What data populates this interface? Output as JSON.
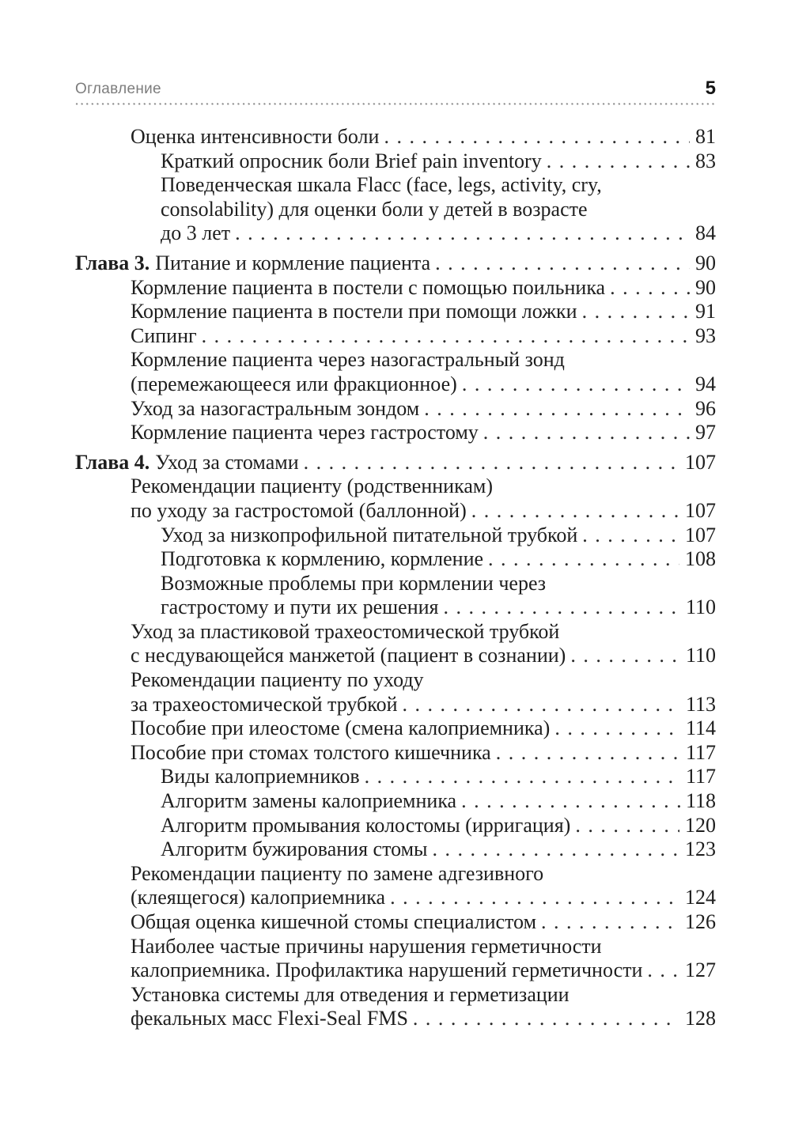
{
  "header": {
    "title": "Оглавление",
    "page_number": "5"
  },
  "toc": {
    "entries": [
      {
        "level": 1,
        "text": "Оценка интенсивности боли",
        "page": "81"
      },
      {
        "level": 2,
        "text": "Краткий опросник боли Brief pain inventory",
        "page": "83"
      },
      {
        "level": 2,
        "text": "Поведенческая шкала Flacc (face, legs, activity, cry,"
      },
      {
        "level": 2,
        "text": "consolability) для оценки боли у детей в возрасте"
      },
      {
        "level": 2,
        "text": "до 3 лет",
        "page": "84"
      },
      {
        "level": 0,
        "prefix": "Глава 3.",
        "text": "Питание и кормление пациента",
        "page": "90"
      },
      {
        "level": 1,
        "text": "Кормление пациента в постели с помощью поильника",
        "page": "90"
      },
      {
        "level": 1,
        "text": "Кормление пациента в постели при помощи ложки",
        "page": "91"
      },
      {
        "level": 1,
        "text": "Сипинг",
        "page": "93"
      },
      {
        "level": 1,
        "text": "Кормление пациента через назогастральный зонд"
      },
      {
        "level": 1,
        "text": "(перемежающееся или фракционное)",
        "page": "94"
      },
      {
        "level": 1,
        "text": "Уход за назогастральным зондом",
        "page": "96"
      },
      {
        "level": 1,
        "text": "Кормление пациента через гастростому",
        "page": "97"
      },
      {
        "level": 0,
        "prefix": "Глава 4.",
        "text": "Уход за стомами",
        "page": "107"
      },
      {
        "level": 1,
        "text": "Рекомендации пациенту (родственникам)"
      },
      {
        "level": 1,
        "text": "по уходу за гастростомой (баллонной)",
        "page": "107"
      },
      {
        "level": 2,
        "text": "Уход за низкопрофильной питательной трубкой",
        "page": "107"
      },
      {
        "level": 2,
        "text": "Подготовка к кормлению, кормление",
        "page": "108"
      },
      {
        "level": 2,
        "text": "Возможные проблемы при кормлении через"
      },
      {
        "level": 2,
        "text": "гастростому и пути их решения",
        "page": "110"
      },
      {
        "level": 1,
        "text": "Уход за пластиковой трахеостомической трубкой"
      },
      {
        "level": 1,
        "text": "с несдувающейся манжетой (пациент в сознании)",
        "page": "110"
      },
      {
        "level": 1,
        "text": "Рекомендации пациенту по уходу"
      },
      {
        "level": 1,
        "text": "за трахеостомической трубкой",
        "page": "113"
      },
      {
        "level": 1,
        "text": "Пособие при илеостоме (смена калоприемника)",
        "page": "114"
      },
      {
        "level": 1,
        "text": "Пособие при стомах толстого кишечника",
        "page": "117"
      },
      {
        "level": 2,
        "text": "Виды калоприемников",
        "page": "117"
      },
      {
        "level": 2,
        "text": "Алгоритм замены калоприемника",
        "page": "118"
      },
      {
        "level": 2,
        "text": "Алгоритм промывания колостомы (ирригация)",
        "page": "120"
      },
      {
        "level": 2,
        "text": "Алгоритм бужирования стомы",
        "page": "123"
      },
      {
        "level": 1,
        "text": "Рекомендации пациенту по замене адгезивного"
      },
      {
        "level": 1,
        "text": "(клеящегося) калоприемника",
        "page": "124"
      },
      {
        "level": 1,
        "text": "Общая оценка кишечной стомы специалистом",
        "page": "126"
      },
      {
        "level": 1,
        "text": "Наиболее частые причины нарушения герметичности"
      },
      {
        "level": 1,
        "text": "калоприемника. Профилактика нарушений герметичности",
        "page": "127"
      },
      {
        "level": 1,
        "text": "Установка системы для отведения и герметизации"
      },
      {
        "level": 1,
        "text": "фекальных масс Flexi-Seal FMS",
        "page": "128"
      }
    ]
  }
}
